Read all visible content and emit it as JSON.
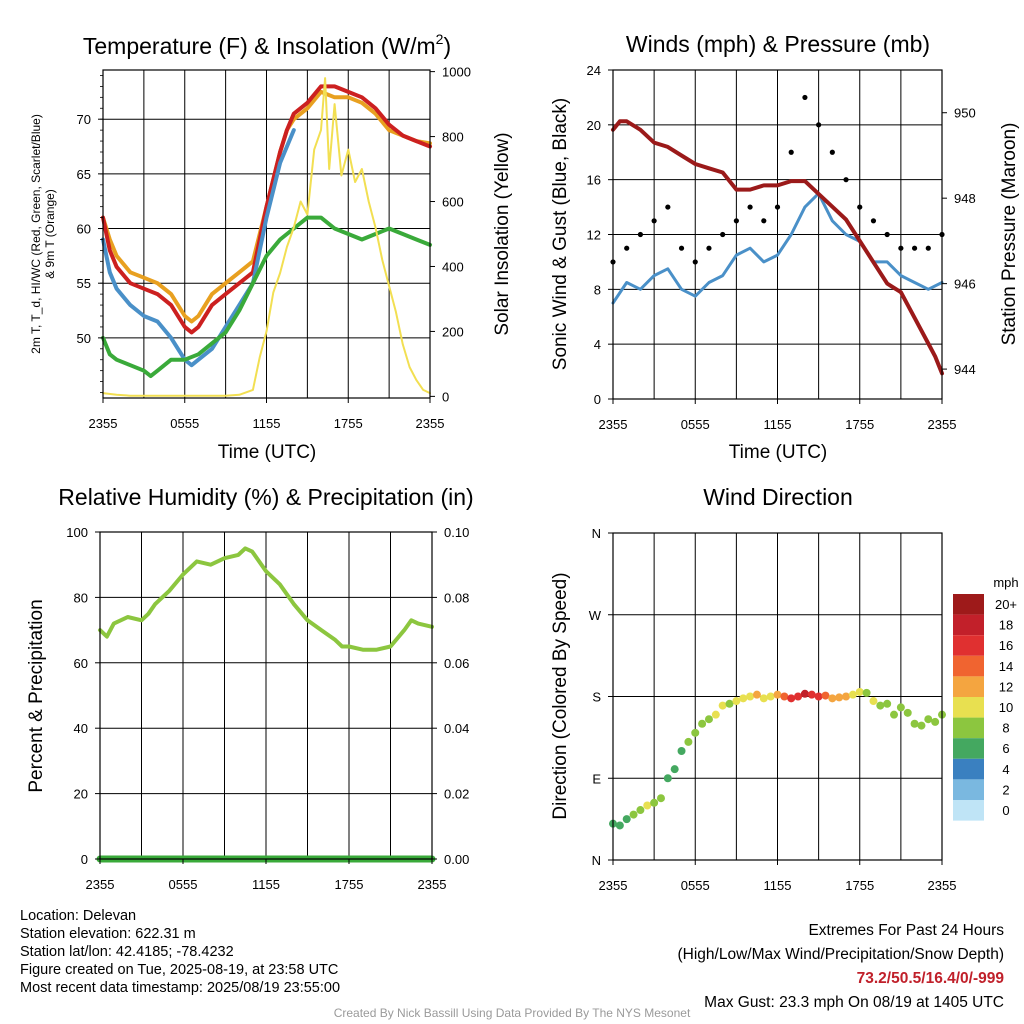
{
  "x_ticks": [
    "2355",
    "0555",
    "1155",
    "1755",
    "2355"
  ],
  "chart_data": [
    {
      "id": "temp",
      "type": "line",
      "title": "Temperature (F) & Insolation (W/m²)",
      "title_base": "Temperature (F) & Insolation (W/m",
      "title_sup": "2",
      "title_end": ")",
      "xlabel": "Time (UTC)",
      "ylabel_lines": [
        "2m T, T_d, HI/WC (Red, Green, Scarlet/Blue)",
        "& 9m T (Orange)"
      ],
      "ylabel_right": "Solar Insolation (Yellow)",
      "x_range_hours": [
        0,
        24
      ],
      "ylim": [
        44.5,
        74.5
      ],
      "yticks": [
        50,
        55,
        60,
        65,
        70
      ],
      "y2lim": [
        -5,
        1005
      ],
      "y2ticks": [
        0,
        200,
        400,
        600,
        800,
        1000
      ],
      "series": [
        {
          "axis": "left",
          "color": "#e8a020",
          "width": 4,
          "hours": [
            0,
            0.5,
            1,
            2,
            3,
            4,
            5,
            6,
            6.5,
            7,
            8,
            9,
            10,
            11,
            12,
            13,
            13.5,
            14,
            15,
            16,
            17,
            18,
            19,
            20,
            21,
            22,
            23,
            24
          ],
          "values": [
            61,
            59,
            57.5,
            56,
            55.5,
            55,
            54,
            52,
            51.5,
            52,
            54,
            55,
            56,
            57,
            62,
            67,
            69,
            70,
            71,
            72.5,
            72,
            72,
            71.5,
            70.5,
            69,
            68.5,
            68,
            67.8
          ]
        },
        {
          "axis": "left",
          "color": "#cc2020",
          "width": 4,
          "hours": [
            0,
            0.5,
            1,
            2,
            3,
            4,
            5,
            6,
            6.5,
            7,
            8,
            9,
            10,
            11,
            12,
            13,
            13.5,
            14,
            15,
            16,
            17,
            18,
            19,
            20,
            21,
            22,
            23,
            24
          ],
          "values": [
            61,
            58,
            56.5,
            55,
            54.5,
            54,
            53,
            51,
            50.5,
            51,
            53,
            54,
            55,
            56,
            62,
            67,
            69,
            70.5,
            71.5,
            73,
            73,
            72.5,
            72,
            71,
            69.5,
            68.5,
            68,
            67.5
          ]
        },
        {
          "axis": "left",
          "color": "#4a90c8",
          "width": 4,
          "hours": [
            0,
            0.5,
            1,
            2,
            3,
            4,
            5,
            6,
            6.5,
            7,
            8,
            9,
            10,
            11,
            12,
            13,
            14
          ],
          "values": [
            59,
            56,
            54.5,
            53,
            52,
            51.5,
            50,
            48,
            47.5,
            48,
            49,
            51,
            53,
            55,
            61,
            66,
            69
          ]
        },
        {
          "axis": "left",
          "color": "#3aaa3a",
          "width": 4,
          "hours": [
            0,
            0.5,
            1,
            2,
            3,
            3.5,
            4,
            5,
            6,
            7,
            8,
            9,
            10,
            11,
            12,
            13,
            14,
            15,
            16,
            17,
            18,
            19,
            20,
            21,
            22,
            23,
            24
          ],
          "values": [
            50,
            48.5,
            48,
            47.5,
            47,
            46.5,
            47,
            48,
            48,
            48.5,
            49.5,
            50.5,
            52.5,
            55,
            57.5,
            59,
            60,
            61,
            61,
            60,
            59.5,
            59,
            59.5,
            60,
            59.5,
            59,
            58.5
          ]
        },
        {
          "axis": "right",
          "color": "#f2df52",
          "width": 2,
          "hours": [
            0,
            1,
            2,
            3,
            4,
            5,
            6,
            7,
            8,
            9,
            10,
            11,
            11.5,
            12,
            12.5,
            13,
            13.5,
            14,
            14.5,
            15,
            15.5,
            16,
            16.3,
            16.6,
            17,
            17.5,
            18,
            18.5,
            19,
            19.5,
            20,
            20.5,
            21,
            21.5,
            22,
            22.5,
            23,
            23.5,
            24
          ],
          "values": [
            10,
            5,
            2,
            2,
            2,
            2,
            2,
            2,
            2,
            2,
            5,
            20,
            120,
            200,
            320,
            380,
            460,
            520,
            600,
            560,
            760,
            820,
            980,
            700,
            900,
            680,
            760,
            660,
            700,
            600,
            520,
            420,
            340,
            260,
            160,
            90,
            50,
            20,
            10
          ]
        }
      ]
    },
    {
      "id": "wind",
      "type": "line",
      "title": "Winds (mph) & Pressure (mb)",
      "xlabel": "Time (UTC)",
      "ylabel": "Sonic Wind & Gust (Blue, Black)",
      "ylabel_right": "Station Pressure (Maroon)",
      "x_range_hours": [
        0,
        24
      ],
      "ylim": [
        0,
        24
      ],
      "yticks": [
        0,
        4,
        8,
        12,
        16,
        20,
        24
      ],
      "y2lim": [
        943.3,
        951.0
      ],
      "y2ticks": [
        944,
        946,
        948,
        950
      ],
      "series": [
        {
          "name": "Sonic Wind",
          "axis": "left",
          "color": "#4a90c8",
          "width": 3,
          "hours": [
            0,
            1,
            2,
            3,
            4,
            5,
            6,
            7,
            8,
            9,
            10,
            11,
            12,
            13,
            14,
            15,
            16,
            17,
            18,
            19,
            20,
            21,
            22,
            23,
            24
          ],
          "values": [
            7,
            8.5,
            8,
            9,
            9.5,
            8,
            7.5,
            8.5,
            9,
            10.5,
            11,
            10,
            10.5,
            12,
            14,
            15,
            13,
            12,
            11.5,
            10,
            10,
            9,
            8.5,
            8,
            8.5
          ]
        },
        {
          "name": "Gust",
          "axis": "left",
          "color": "#000000",
          "width": 0,
          "hours": [
            0,
            1,
            2,
            3,
            4,
            5,
            6,
            7,
            8,
            9,
            10,
            11,
            12,
            13,
            14,
            15,
            16,
            17,
            18,
            19,
            20,
            21,
            22,
            23,
            24
          ],
          "values": [
            10,
            11,
            12,
            13,
            14,
            11,
            10,
            11,
            12,
            13,
            14,
            13,
            14,
            18,
            22,
            20,
            18,
            16,
            14,
            13,
            12,
            11,
            11,
            11,
            12
          ]
        },
        {
          "name": "Pressure",
          "axis": "right",
          "color": "#9b1a1a",
          "width": 4,
          "hours": [
            0,
            0.5,
            1,
            2,
            3,
            4,
            5,
            6,
            7,
            8,
            9,
            10,
            11,
            12,
            13,
            14,
            15,
            16,
            17,
            18,
            19,
            20,
            21,
            22,
            23,
            23.5,
            24
          ],
          "values": [
            949.6,
            949.8,
            949.8,
            949.6,
            949.3,
            949.2,
            949.0,
            948.8,
            948.7,
            948.6,
            948.2,
            948.2,
            948.3,
            948.3,
            948.4,
            948.4,
            948.1,
            947.8,
            947.5,
            947.0,
            946.5,
            946.0,
            945.8,
            945.2,
            944.6,
            944.3,
            943.9
          ]
        }
      ]
    },
    {
      "id": "rh",
      "type": "line",
      "title": "Relative Humidity (%) & Precipitation (in)",
      "xlabel": "",
      "ylabel": "Percent & Precipitation",
      "x_range_hours": [
        0,
        24
      ],
      "ylim": [
        0,
        100
      ],
      "yticks": [
        0,
        20,
        40,
        60,
        80,
        100
      ],
      "yticklabels": [
        "0",
        "20",
        "40",
        "60",
        "80",
        "100"
      ],
      "y2ticklabels": [
        "0.00",
        "0.02",
        "0.04",
        "0.06",
        "0.08",
        "0.10"
      ],
      "series": [
        {
          "name": "RH",
          "axis": "left",
          "color": "#8cc63f",
          "width": 4,
          "hours": [
            0,
            0.5,
            1,
            2,
            3,
            3.5,
            4,
            5,
            6,
            7,
            8,
            9,
            10,
            10.5,
            11,
            12,
            13,
            14,
            15,
            16,
            17,
            17.5,
            18,
            19,
            20,
            21,
            22,
            22.5,
            23,
            24
          ],
          "values": [
            70,
            68,
            72,
            74,
            73,
            75,
            78,
            82,
            87,
            91,
            90,
            92,
            93,
            95,
            94,
            88,
            84,
            78,
            73,
            70,
            67,
            65,
            65,
            64,
            64,
            65,
            70,
            73,
            72,
            71
          ]
        },
        {
          "name": "Precipitation",
          "axis": "left",
          "color": "#3aaa3a",
          "width": 7,
          "hours": [
            0,
            24
          ],
          "values": [
            0,
            0
          ]
        }
      ]
    },
    {
      "id": "dir",
      "type": "scatter",
      "title": "Wind Direction",
      "xlabel": "",
      "ylabel": "Direction (Colored By Speed)",
      "x_range_hours": [
        0,
        24
      ],
      "ylim": [
        0,
        360
      ],
      "yticks": [
        0,
        90,
        180,
        270,
        360
      ],
      "yticklabels": [
        "N",
        "E",
        "S",
        "W",
        "N"
      ],
      "hours": [
        0,
        0.5,
        1,
        1.5,
        2,
        2.5,
        3,
        3.5,
        4,
        4.5,
        5,
        5.5,
        6,
        6.5,
        7,
        7.5,
        8,
        8.5,
        9,
        9.5,
        10,
        10.5,
        11,
        11.5,
        12,
        12.5,
        13,
        13.5,
        14,
        14.5,
        15,
        15.5,
        16,
        16.5,
        17,
        17.5,
        18,
        18.5,
        19,
        19.5,
        20,
        20.5,
        21,
        21.5,
        22,
        22.5,
        23,
        23.5,
        24
      ],
      "values": [
        40,
        38,
        45,
        50,
        55,
        60,
        63,
        68,
        90,
        100,
        120,
        130,
        140,
        150,
        155,
        160,
        170,
        172,
        175,
        178,
        180,
        182,
        178,
        180,
        182,
        180,
        178,
        180,
        183,
        182,
        180,
        181,
        178,
        179,
        180,
        182,
        185,
        184,
        175,
        170,
        172,
        160,
        168,
        162,
        150,
        148,
        155,
        152,
        160
      ],
      "speeds": [
        6,
        6,
        7,
        8,
        9,
        10,
        9,
        8,
        7,
        6,
        7,
        8,
        8,
        9,
        8,
        10,
        11,
        9,
        10,
        11,
        10,
        12,
        11,
        10,
        12,
        14,
        16,
        17,
        18,
        17,
        16,
        14,
        12,
        13,
        12,
        11,
        10,
        9,
        10,
        9,
        8,
        8,
        9,
        9,
        8,
        9,
        8,
        8,
        9
      ],
      "legend_title": "mph",
      "legend_labels": [
        "20+",
        "18",
        "16",
        "14",
        "12",
        "10",
        "8",
        "6",
        "4",
        "2",
        "0"
      ],
      "legend_colors": [
        "#9e1a1a",
        "#c2202a",
        "#e03030",
        "#f06430",
        "#f4a540",
        "#e8e050",
        "#8cc63f",
        "#44a860",
        "#3a80c0",
        "#7ab8e0",
        "#bfe4f6"
      ]
    }
  ],
  "info": {
    "location": "Location: Delevan",
    "elevation": "Station elevation: 622.31 m",
    "latlon": "Station lat/lon: 42.4185; -78.4232",
    "created": "Figure created on Tue, 2025-08-19, at 23:58 UTC",
    "recent": "Most recent data timestamp: 2025/08/19 23:55:00"
  },
  "extremes": {
    "title": "Extremes For Past 24 Hours",
    "subtitle": "(High/Low/Max Wind/Precipitation/Snow Depth)",
    "values": "73.2/50.5/16.4/0/-999",
    "values_color": "#c0202a",
    "max_gust": "Max Gust: 23.3 mph On 08/19 at 1405 UTC"
  },
  "credit": "Created By Nick Bassill Using Data Provided By The NYS Mesonet"
}
